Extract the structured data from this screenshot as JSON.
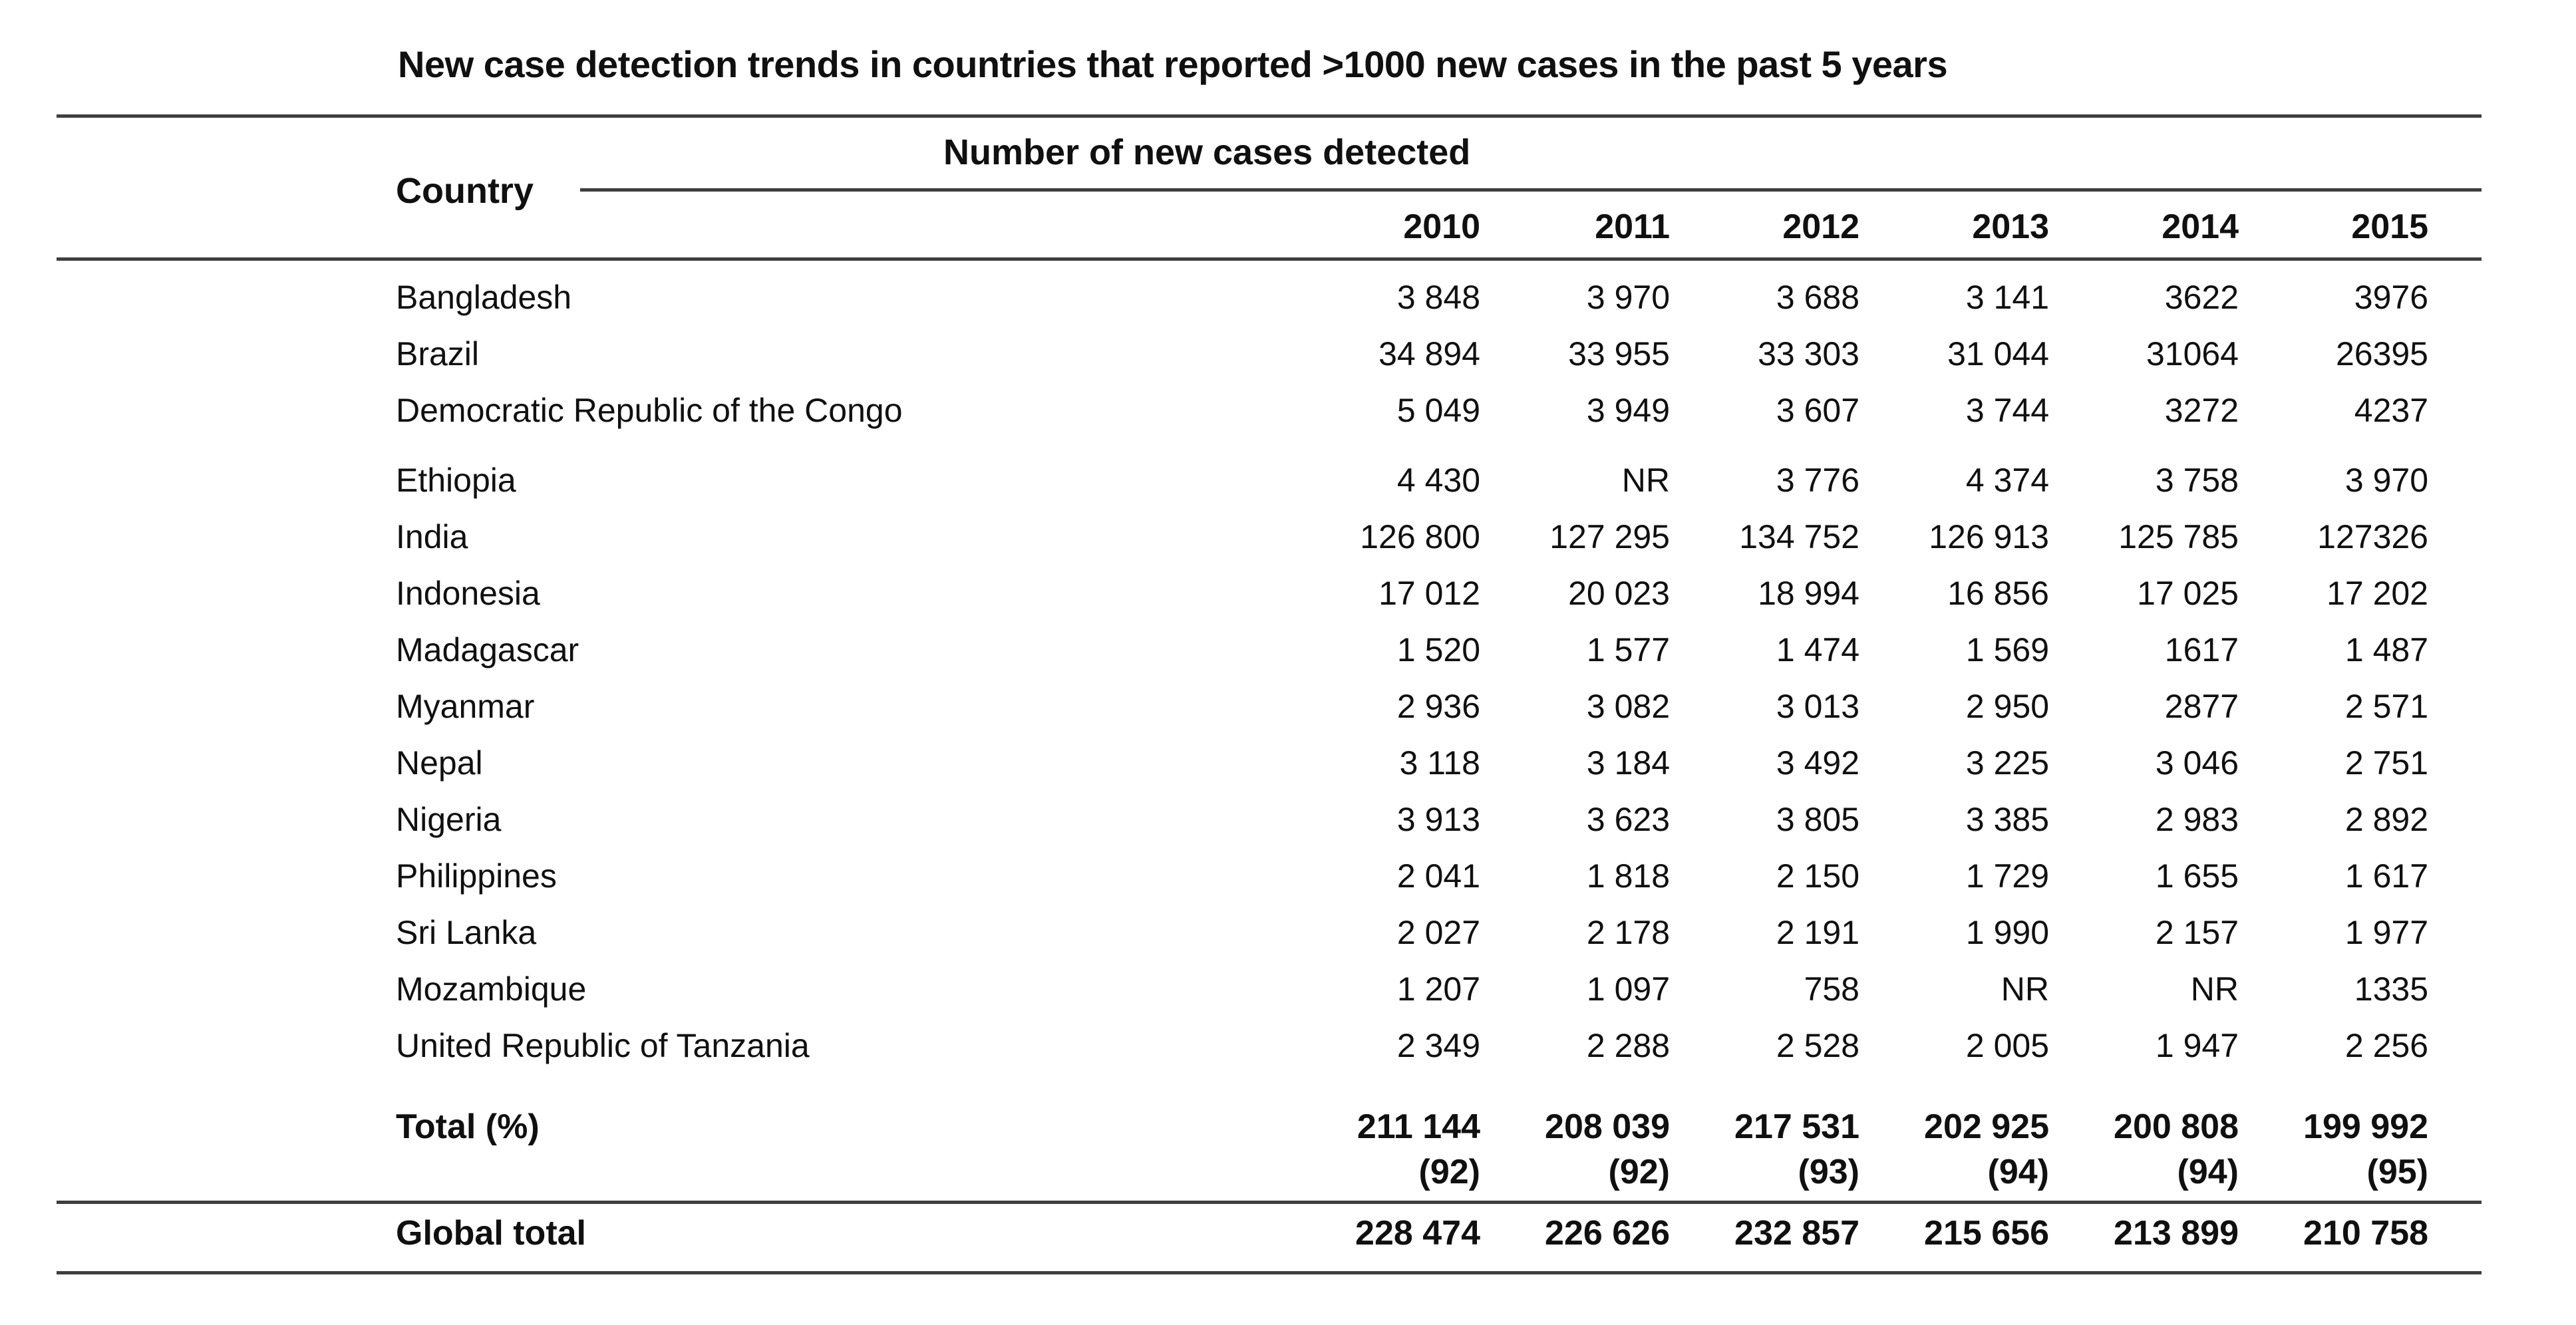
{
  "title": "New case detection trends in countries that reported >1000 new cases in the past 5 years",
  "table": {
    "country_header": "Country",
    "span_header": "Number of new cases detected",
    "years": [
      "2010",
      "2011",
      "2012",
      "2013",
      "2014",
      "2015"
    ],
    "rows": [
      {
        "country": "Bangladesh",
        "values": [
          "3 848",
          "3 970",
          "3 688",
          "3 141",
          "3622",
          "3976"
        ]
      },
      {
        "country": "Brazil",
        "values": [
          "34 894",
          "33 955",
          "33 303",
          "31 044",
          "31064",
          "26395"
        ]
      },
      {
        "country": "Democratic Republic of the Congo",
        "values": [
          "5 049",
          "3 949",
          "3 607",
          "3 744",
          "3272",
          "4237"
        ]
      },
      {
        "country": "Ethiopia",
        "group_start": true,
        "values": [
          "4 430",
          "NR",
          "3 776",
          "4 374",
          "3 758",
          "3 970"
        ]
      },
      {
        "country": "India",
        "values": [
          "126 800",
          "127 295",
          "134 752",
          "126 913",
          "125 785",
          "127326"
        ]
      },
      {
        "country": "Indonesia",
        "values": [
          "17 012",
          "20 023",
          "18 994",
          "16 856",
          "17 025",
          "17 202"
        ]
      },
      {
        "country": "Madagascar",
        "values": [
          "1 520",
          "1 577",
          "1 474",
          "1 569",
          "1617",
          "1 487"
        ]
      },
      {
        "country": "Myanmar",
        "values": [
          "2 936",
          "3 082",
          "3 013",
          "2 950",
          "2877",
          "2 571"
        ]
      },
      {
        "country": "Nepal",
        "values": [
          "3 118",
          "3 184",
          "3 492",
          "3 225",
          "3 046",
          "2 751"
        ]
      },
      {
        "country": "Nigeria",
        "values": [
          "3 913",
          "3 623",
          "3 805",
          "3 385",
          "2 983",
          "2 892"
        ]
      },
      {
        "country": "Philippines",
        "values": [
          "2 041",
          "1 818",
          "2 150",
          "1 729",
          "1 655",
          "1 617"
        ]
      },
      {
        "country": "Sri Lanka",
        "values": [
          "2 027",
          "2 178",
          "2 191",
          "1 990",
          "2 157",
          "1 977"
        ]
      },
      {
        "country": "Mozambique",
        "values": [
          "1 207",
          "1 097",
          "758",
          "NR",
          "NR",
          "1335"
        ]
      },
      {
        "country": "United Republic of Tanzania",
        "values": [
          "2 349",
          "2 288",
          "2 528",
          "2 005",
          "1 947",
          "2 256"
        ]
      }
    ],
    "total": {
      "label": "Total (%)",
      "values": [
        "211 144",
        "208 039",
        "217 531",
        "202 925",
        "200 808",
        "199 992"
      ],
      "percents": [
        "(92)",
        "(92)",
        "(93)",
        "(94)",
        "(94)",
        "(95)"
      ]
    },
    "global": {
      "label": "Global total",
      "values": [
        "228 474",
        "226 626",
        "232 857",
        "215 656",
        "213 899",
        "210 758"
      ]
    }
  },
  "colors": {
    "rule": "#3e3e3e",
    "text": "#101010",
    "background": "#ffffff"
  }
}
